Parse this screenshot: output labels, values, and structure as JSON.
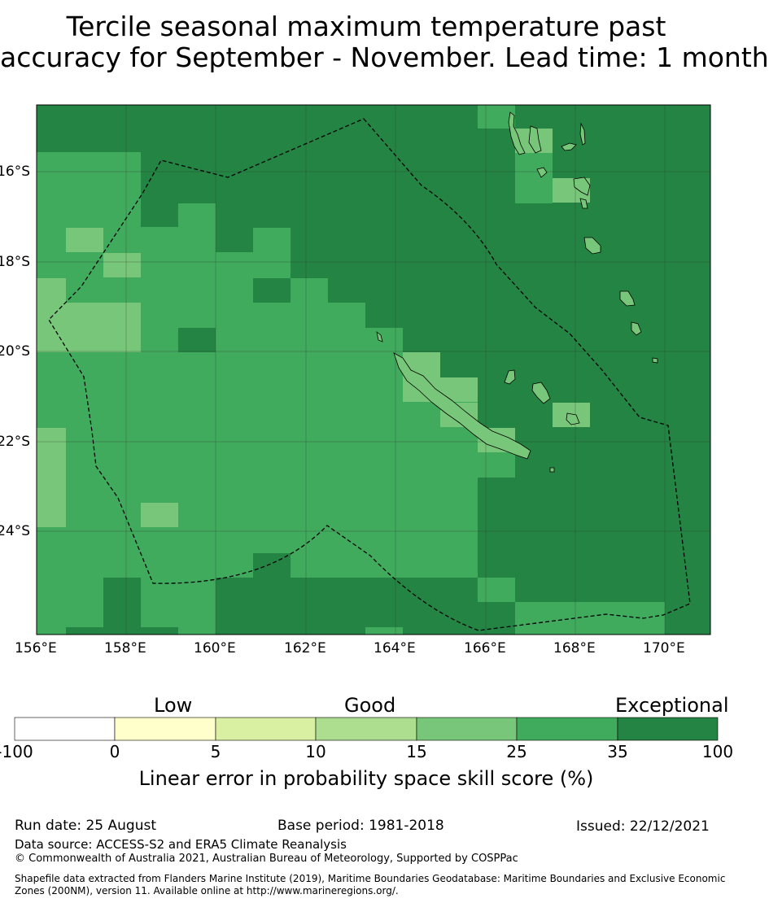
{
  "title_line1": "Tercile seasonal maximum temperature past",
  "title_line2": "accuracy for September - November. Lead time: 1 month",
  "map": {
    "lon_range": [
      156,
      171
    ],
    "lat_range": [
      -26.2,
      -14.4
    ],
    "lon_labels": [
      "156°E",
      "158°E",
      "160°E",
      "162°E",
      "164°E",
      "166°E",
      "168°E",
      "170°E"
    ],
    "lat_labels": [
      "16°S",
      "18°S",
      "20°S",
      "22°S",
      "24°S"
    ],
    "boundary_style": "dashed",
    "colors": {
      "c15_25": "#78c679",
      "c25_35": "#41ab5d",
      "c35_100": "#238443",
      "land": "#78c679",
      "coast": "#000000"
    }
  },
  "colorbar": {
    "ticks": [
      "-100",
      "0",
      "5",
      "10",
      "15",
      "25",
      "35",
      "100"
    ],
    "colors": [
      "#ffffff",
      "#ffffcc",
      "#d9f0a3",
      "#addd8e",
      "#78c679",
      "#41ab5d",
      "#238443"
    ],
    "category_labels": {
      "low": "Low",
      "good": "Good",
      "exceptional": "Exceptional"
    },
    "label": "Linear error in probability space skill score (%)"
  },
  "footer": {
    "run_date": "Run date: 25 August",
    "base_period": "Base period: 1981-2018",
    "issued": "Issued: 22/12/2021",
    "data_source": "Data source: ACCESS-S2 and ERA5 Climate Reanalysis",
    "copyright": "© Commonwealth of Australia 2021, Australian Bureau of Meteorology, Supported by COSPPac",
    "shapefile_1": "Shapefile data extracted from Flanders Marine Institute (2019), Maritime Boundaries Geodatabase: Maritime Boundaries and Exclusive Economic",
    "shapefile_2": "Zones (200NM), version 11. Available online at http://www.marineregions.org/."
  }
}
